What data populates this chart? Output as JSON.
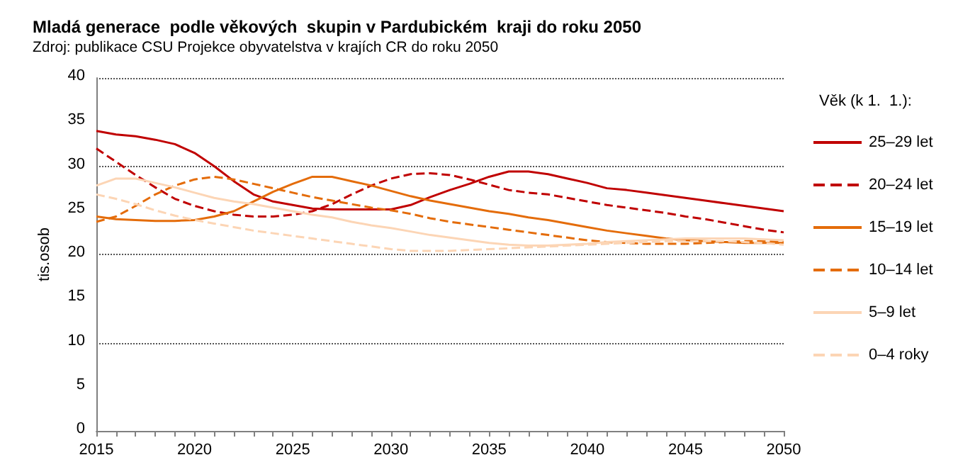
{
  "chart_data": {
    "type": "line",
    "title": "Mladá generace  podle věkových  skupin v Pardubickém  kraji do roku 2050",
    "subtitle": "Zdroj: publikace CSU Projekce obyvatelstva v krajích CR do roku 2050",
    "ylabel": "tis.osob",
    "legend_title": "Věk (k 1.  1.):",
    "x": [
      2015,
      2016,
      2017,
      2018,
      2019,
      2020,
      2021,
      2022,
      2023,
      2024,
      2025,
      2026,
      2027,
      2028,
      2029,
      2030,
      2031,
      2032,
      2033,
      2034,
      2035,
      2036,
      2037,
      2038,
      2039,
      2040,
      2041,
      2042,
      2043,
      2044,
      2045,
      2046,
      2047,
      2048,
      2049,
      2050
    ],
    "series": [
      {
        "name": "25–29 let",
        "color": "#c00000",
        "line_style": "solid",
        "values": [
          34,
          33.6,
          33.4,
          33,
          32.5,
          31.5,
          30,
          28.3,
          26.8,
          26,
          25.6,
          25.2,
          25.1,
          25.1,
          25.1,
          25.1,
          25.6,
          26.5,
          27.3,
          28,
          28.8,
          29.4,
          29.4,
          29.1,
          28.6,
          28.1,
          27.5,
          27.3,
          27,
          26.7,
          26.4,
          26.1,
          25.8,
          25.5,
          25.2,
          24.9
        ]
      },
      {
        "name": "20–24 let",
        "color": "#c00000",
        "line_style": "dashed",
        "values": [
          32,
          30.5,
          29,
          27.6,
          26.3,
          25.5,
          24.9,
          24.5,
          24.3,
          24.3,
          24.5,
          24.9,
          25.7,
          26.8,
          27.8,
          28.6,
          29.1,
          29.2,
          29,
          28.5,
          27.9,
          27.3,
          27,
          26.8,
          26.4,
          26,
          25.6,
          25.3,
          25,
          24.7,
          24.3,
          24,
          23.6,
          23.2,
          22.8,
          22.5
        ]
      },
      {
        "name": "15–19 let",
        "color": "#e46c0a",
        "line_style": "solid",
        "values": [
          24.3,
          24,
          23.9,
          23.8,
          23.8,
          23.9,
          24.3,
          24.9,
          26,
          27.1,
          28,
          28.8,
          28.8,
          28.3,
          27.8,
          27.2,
          26.6,
          26.1,
          25.7,
          25.3,
          24.9,
          24.6,
          24.2,
          23.9,
          23.5,
          23.1,
          22.7,
          22.4,
          22.1,
          21.8,
          21.6,
          21.5,
          21.4,
          21.3,
          21.3,
          21.3
        ]
      },
      {
        "name": "10–14 let",
        "color": "#e46c0a",
        "line_style": "dashed",
        "values": [
          23.7,
          24.3,
          25.5,
          26.8,
          27.8,
          28.5,
          28.8,
          28.5,
          28,
          27.5,
          27,
          26.5,
          26.1,
          25.7,
          25.3,
          25,
          24.6,
          24.1,
          23.7,
          23.4,
          23.1,
          22.8,
          22.5,
          22.2,
          21.9,
          21.6,
          21.4,
          21.3,
          21.2,
          21.2,
          21.2,
          21.3,
          21.4,
          21.5,
          21.5,
          21.5
        ]
      },
      {
        "name": "5–9 let",
        "color": "#fcd5b5",
        "line_style": "solid",
        "values": [
          27.8,
          28.6,
          28.6,
          28.1,
          27.6,
          27,
          26.4,
          26,
          25.7,
          25.3,
          24.9,
          24.5,
          24.2,
          23.7,
          23.3,
          23,
          22.6,
          22.2,
          21.9,
          21.6,
          21.3,
          21.1,
          21,
          21,
          21.1,
          21.2,
          21.4,
          21.5,
          21.6,
          21.7,
          21.8,
          21.8,
          21.8,
          21.8,
          21.7,
          21.6
        ]
      },
      {
        "name": "0–4 roky",
        "color": "#fcd5b5",
        "line_style": "dashed",
        "values": [
          26.8,
          26.3,
          25.7,
          25,
          24.4,
          23.9,
          23.5,
          23.1,
          22.7,
          22.4,
          22.1,
          21.8,
          21.5,
          21.2,
          20.9,
          20.6,
          20.4,
          20.4,
          20.4,
          20.5,
          20.6,
          20.7,
          20.8,
          20.9,
          21,
          21.1,
          21.2,
          21.3,
          21.4,
          21.5,
          21.5,
          21.5,
          21.5,
          21.4,
          21.3,
          21.1
        ]
      }
    ],
    "xlim": [
      2015,
      2050
    ],
    "xticks": [
      2015,
      2020,
      2025,
      2030,
      2035,
      2040,
      2045,
      2050
    ],
    "ylim": [
      0,
      40
    ],
    "yticks": [
      0,
      5,
      10,
      15,
      20,
      25,
      30,
      35,
      40
    ],
    "grid": "y",
    "legend": "right",
    "marker": "none"
  }
}
